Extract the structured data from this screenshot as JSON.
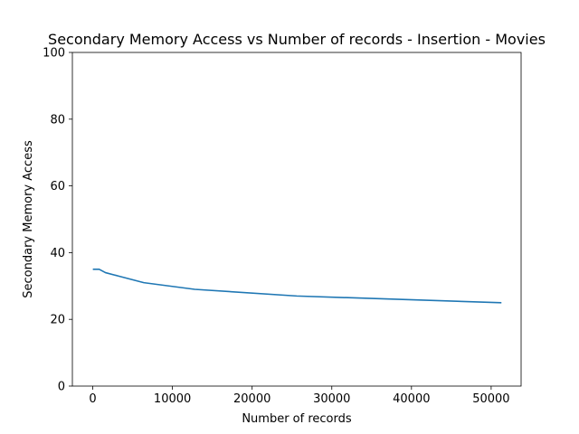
{
  "chart_data": {
    "type": "line",
    "title": "Secondary Memory Access vs Number of records - Insertion - Movies",
    "xlabel": "Number of records",
    "ylabel": "Secondary Memory Access",
    "xlim": [
      -2560,
      53760
    ],
    "ylim": [
      0,
      100
    ],
    "xticks": [
      0,
      10000,
      20000,
      30000,
      40000,
      50000
    ],
    "xtick_labels": [
      "0",
      "10000",
      "20000",
      "30000",
      "40000",
      "50000"
    ],
    "yticks": [
      0,
      20,
      40,
      60,
      80,
      100
    ],
    "ytick_labels": [
      "0",
      "20",
      "40",
      "60",
      "80",
      "100"
    ],
    "grid": false,
    "legend": "none",
    "series": [
      {
        "color": "#1f77b4",
        "x": [
          100,
          800,
          1600,
          3200,
          6400,
          12800,
          25600,
          51200
        ],
        "y": [
          35,
          35,
          34,
          33,
          31,
          29,
          27,
          25
        ]
      }
    ]
  }
}
